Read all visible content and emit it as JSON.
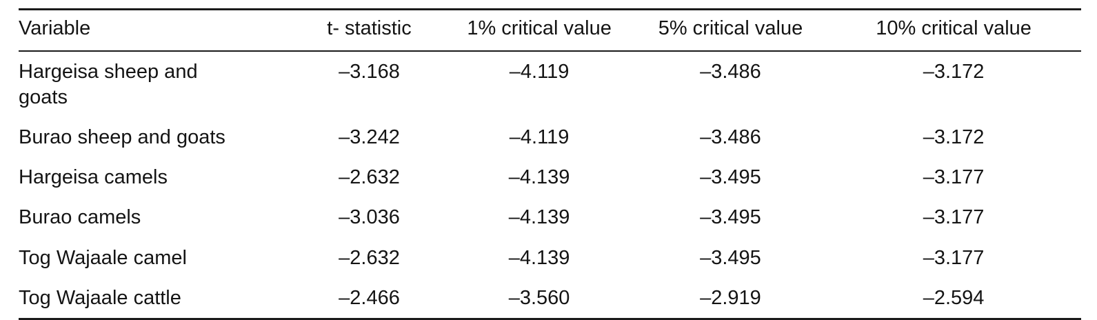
{
  "table": {
    "columns": [
      "Variable",
      "t- statistic",
      "1% critical value",
      "5% critical value",
      "10% critical value"
    ],
    "rows": [
      {
        "variable": "Hargeisa sheep and\ngoats",
        "t_statistic": "–3.168",
        "cv_1": "–4.119",
        "cv_5": "–3.486",
        "cv_10": "–3.172"
      },
      {
        "variable": "Burao sheep and goats",
        "t_statistic": "–3.242",
        "cv_1": "–4.119",
        "cv_5": "–3.486",
        "cv_10": "–3.172"
      },
      {
        "variable": "Hargeisa camels",
        "t_statistic": "–2.632",
        "cv_1": "–4.139",
        "cv_5": "–3.495",
        "cv_10": "–3.177"
      },
      {
        "variable": "Burao camels",
        "t_statistic": "–3.036",
        "cv_1": "–4.139",
        "cv_5": "–3.495",
        "cv_10": "–3.177"
      },
      {
        "variable": "Tog Wajaale camel",
        "t_statistic": "–2.632",
        "cv_1": "–4.139",
        "cv_5": "–3.495",
        "cv_10": "–3.177"
      },
      {
        "variable": "Tog Wajaale cattle",
        "t_statistic": "–2.466",
        "cv_1": "–3.560",
        "cv_5": "–2.919",
        "cv_10": "–2.594"
      }
    ],
    "colors": {
      "rule": "#1a1a1a",
      "text": "#141414",
      "background": "#ffffff"
    }
  }
}
